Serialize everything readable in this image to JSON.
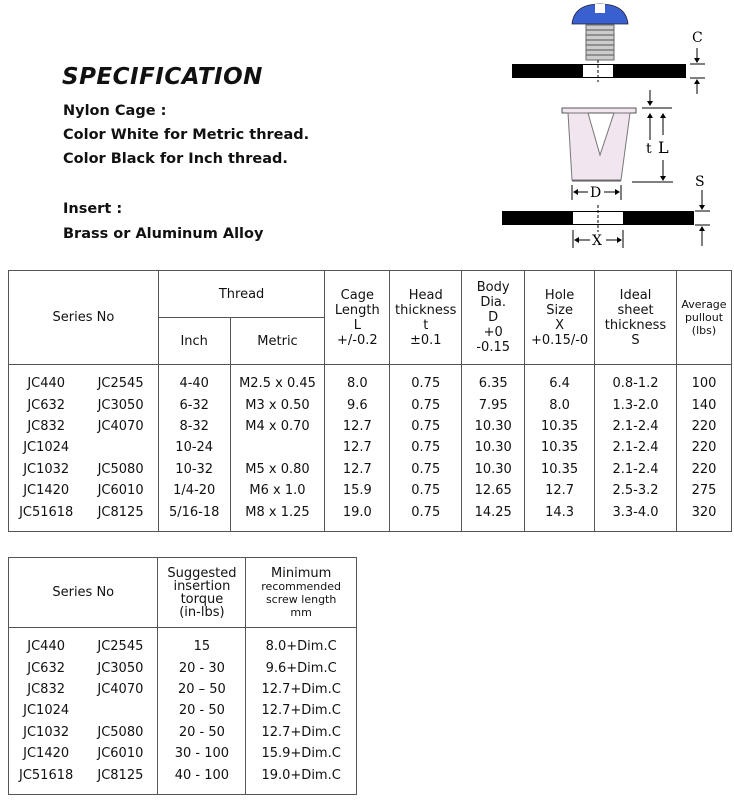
{
  "spec": {
    "title": "SPECIFICATION",
    "lines": [
      "Nylon Cage :",
      "Color White for Metric thread.",
      "Color Black for Inch thread.",
      "Insert :",
      "Brass or Aluminum Alloy"
    ]
  },
  "diagram": {
    "labels": {
      "c": "C",
      "t": "t",
      "l": "L",
      "d": "D",
      "s": "S",
      "x": "X"
    },
    "colors": {
      "screw_head": "#3a5fcf",
      "cage": "#f1e6f0",
      "sheet": "#000000"
    }
  },
  "table1": {
    "headers": {
      "series": "Series No",
      "thread": "Thread",
      "inch": "Inch",
      "metric": "Metric",
      "cage": [
        "Cage",
        "Length",
        "L",
        "+/-0.2"
      ],
      "head": [
        "Head",
        "thickness",
        "t",
        "±0.1"
      ],
      "body": [
        "Body",
        "Dia.",
        "D",
        "+0",
        "-0.15"
      ],
      "hole": [
        "Hole",
        "Size",
        "X",
        "+0.15/-0"
      ],
      "ideal": [
        "Ideal",
        "sheet",
        "thickness",
        "S"
      ],
      "avg": [
        "Average",
        "pullout",
        "(lbs)"
      ]
    },
    "rows": [
      [
        "JC440",
        "JC2545",
        "4-40",
        "M2.5 x 0.45",
        "8.0",
        "0.75",
        "6.35",
        "6.4",
        "0.8-1.2",
        "100"
      ],
      [
        "JC632",
        "JC3050",
        "6-32",
        "M3 x 0.50",
        "9.6",
        "0.75",
        "7.95",
        "8.0",
        "1.3-2.0",
        "140"
      ],
      [
        "JC832",
        "JC4070",
        "8-32",
        "M4 x 0.70",
        "12.7",
        "0.75",
        "10.30",
        "10.35",
        "2.1-2.4",
        "220"
      ],
      [
        "JC1024",
        "",
        "10-24",
        "",
        "12.7",
        "0.75",
        "10.30",
        "10.35",
        "2.1-2.4",
        "220"
      ],
      [
        "JC1032",
        "JC5080",
        "10-32",
        "M5 x 0.80",
        "12.7",
        "0.75",
        "10.30",
        "10.35",
        "2.1-2.4",
        "220"
      ],
      [
        "JC1420",
        "JC6010",
        "1/4-20",
        "M6 x 1.0",
        "15.9",
        "0.75",
        "12.65",
        "12.7",
        "2.5-3.2",
        "275"
      ],
      [
        "JC51618",
        "JC8125",
        "5/16-18",
        "M8 x 1.25",
        "19.0",
        "0.75",
        "14.25",
        "14.3",
        "3.3-4.0",
        "320"
      ]
    ]
  },
  "table2": {
    "headers": {
      "series": "Series No",
      "torque": [
        "Suggested",
        "insertion",
        "torque",
        "(in-lbs)"
      ],
      "screw": [
        "Minimum",
        "recommended",
        "screw length",
        "mm"
      ]
    },
    "rows": [
      [
        "JC440",
        "JC2545",
        "15",
        "8.0+Dim.C"
      ],
      [
        "JC632",
        "JC3050",
        "20 - 30",
        "9.6+Dim.C"
      ],
      [
        "JC832",
        "JC4070",
        "20 – 50",
        "12.7+Dim.C"
      ],
      [
        "JC1024",
        "",
        "20 - 50",
        "12.7+Dim.C"
      ],
      [
        "JC1032",
        "JC5080",
        "20 - 50",
        "12.7+Dim.C"
      ],
      [
        "JC1420",
        "JC6010",
        "30 - 100",
        "15.9+Dim.C"
      ],
      [
        "JC51618",
        "JC8125",
        "40 - 100",
        "19.0+Dim.C"
      ]
    ]
  }
}
